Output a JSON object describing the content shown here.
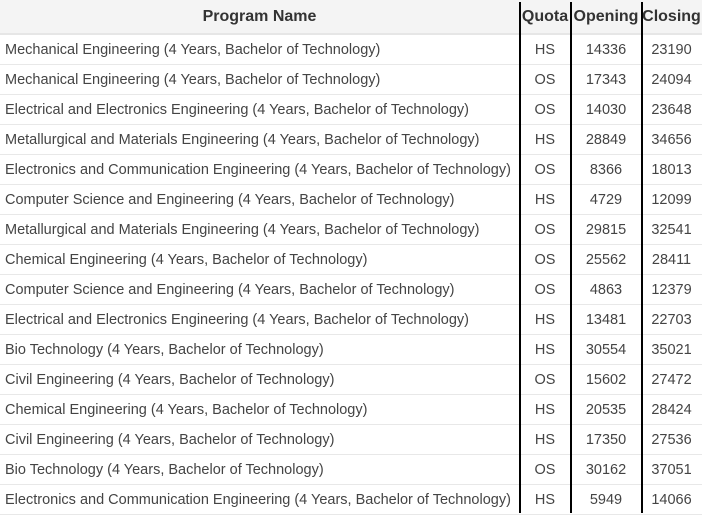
{
  "table": {
    "headers": {
      "program": "Program Name",
      "quota": "Quota",
      "opening": "Opening",
      "closing": "Closing"
    },
    "rows": [
      {
        "program": "Mechanical Engineering (4 Years, Bachelor of Technology)",
        "quota": "HS",
        "opening": "14336",
        "closing": "23190"
      },
      {
        "program": "Mechanical Engineering (4 Years, Bachelor of Technology)",
        "quota": "OS",
        "opening": "17343",
        "closing": "24094"
      },
      {
        "program": "Electrical and Electronics Engineering (4 Years, Bachelor of Technology)",
        "quota": "OS",
        "opening": "14030",
        "closing": "23648"
      },
      {
        "program": "Metallurgical and Materials Engineering (4 Years, Bachelor of Technology)",
        "quota": "HS",
        "opening": "28849",
        "closing": "34656"
      },
      {
        "program": "Electronics and Communication Engineering (4 Years, Bachelor of Technology)",
        "quota": "OS",
        "opening": "8366",
        "closing": "18013"
      },
      {
        "program": "Computer Science and Engineering (4 Years, Bachelor of Technology)",
        "quota": "HS",
        "opening": "4729",
        "closing": "12099"
      },
      {
        "program": "Metallurgical and Materials Engineering (4 Years, Bachelor of Technology)",
        "quota": "OS",
        "opening": "29815",
        "closing": "32541"
      },
      {
        "program": "Chemical Engineering (4 Years, Bachelor of Technology)",
        "quota": "OS",
        "opening": "25562",
        "closing": "28411"
      },
      {
        "program": "Computer Science and Engineering (4 Years, Bachelor of Technology)",
        "quota": "OS",
        "opening": "4863",
        "closing": "12379"
      },
      {
        "program": "Electrical and Electronics Engineering (4 Years, Bachelor of Technology)",
        "quota": "HS",
        "opening": "13481",
        "closing": "22703"
      },
      {
        "program": "Bio Technology (4 Years, Bachelor of Technology)",
        "quota": "HS",
        "opening": "30554",
        "closing": "35021"
      },
      {
        "program": "Civil Engineering (4 Years, Bachelor of Technology)",
        "quota": "OS",
        "opening": "15602",
        "closing": "27472"
      },
      {
        "program": "Chemical Engineering (4 Years, Bachelor of Technology)",
        "quota": "HS",
        "opening": "20535",
        "closing": "28424"
      },
      {
        "program": "Civil Engineering (4 Years, Bachelor of Technology)",
        "quota": "HS",
        "opening": "17350",
        "closing": "27536"
      },
      {
        "program": "Bio Technology (4 Years, Bachelor of Technology)",
        "quota": "OS",
        "opening": "30162",
        "closing": "37051"
      },
      {
        "program": "Electronics and Communication Engineering (4 Years, Bachelor of Technology)",
        "quota": "HS",
        "opening": "5949",
        "closing": "14066"
      }
    ]
  }
}
